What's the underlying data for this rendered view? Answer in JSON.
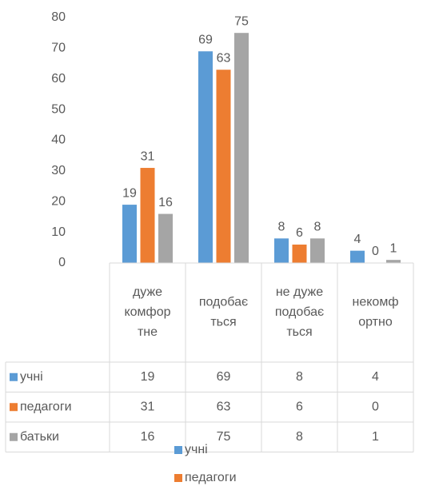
{
  "chart_data": {
    "type": "bar",
    "categories": [
      "дуже комфортне",
      "подобається",
      "не дуже подобається",
      "некомфортно"
    ],
    "series": [
      {
        "name": "учні",
        "color": "#5b9bd5",
        "values": [
          19,
          69,
          8,
          4
        ]
      },
      {
        "name": "педагоги",
        "color": "#ed7d31",
        "values": [
          31,
          63,
          6,
          0
        ]
      },
      {
        "name": "батьки",
        "color": "#a5a5a5",
        "values": [
          16,
          75,
          8,
          1
        ]
      }
    ],
    "ylim": [
      0,
      80
    ],
    "yticks": [
      0,
      10,
      20,
      30,
      40,
      50,
      60,
      70,
      80
    ],
    "grid": false,
    "data_table": true,
    "legend": "bottom"
  }
}
